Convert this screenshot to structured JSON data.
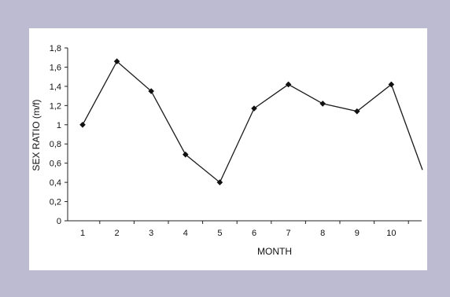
{
  "chart_data": {
    "type": "line",
    "x": [
      "1",
      "2",
      "3",
      "4",
      "5",
      "6",
      "7",
      "8",
      "9",
      "10"
    ],
    "series": [
      {
        "values": [
          1.0,
          1.66,
          1.35,
          0.69,
          0.4,
          1.17,
          1.42,
          1.22,
          1.14,
          1.42
        ]
      }
    ],
    "trailing_value": 0.53,
    "xlabel": "MONTH",
    "ylabel": "SEX RATIO (m/f)",
    "ylim": [
      0,
      1.8
    ],
    "y_ticks": [
      "0",
      "0,2",
      "0,4",
      "0,6",
      "0,8",
      "1",
      "1,2",
      "1,4",
      "1,6",
      "1,8"
    ],
    "grid": false,
    "legend": "none",
    "colors": {
      "line": "#1a1a1a",
      "marker": "#111111",
      "background": "#ffffff",
      "frame": "#bdbbd2"
    }
  }
}
